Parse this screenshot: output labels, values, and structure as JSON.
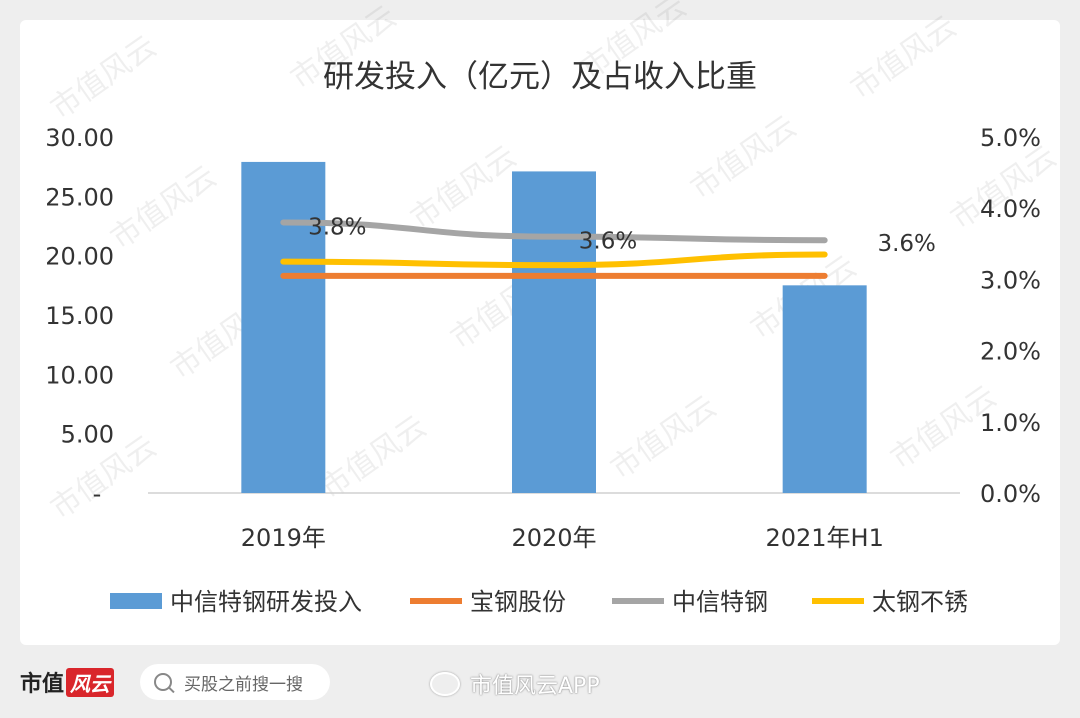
{
  "chart_data": {
    "type": "bar+line",
    "title": "研发投入（亿元）及占收入比重",
    "categories": [
      "2019年",
      "2020年",
      "2021年H1"
    ],
    "bar_series": {
      "name": "中信特钢研发投入",
      "color": "#5b9bd5",
      "values": [
        27.9,
        27.1,
        17.5
      ]
    },
    "line_series": [
      {
        "name": "宝钢股份",
        "color": "#ed7d31",
        "values": [
          3.05,
          3.05,
          3.05
        ]
      },
      {
        "name": "中信特钢",
        "color": "#a5a5a5",
        "values": [
          3.8,
          3.6,
          3.55
        ],
        "labels": [
          "3.8%",
          "3.6%",
          "3.6%"
        ]
      },
      {
        "name": "太钢不锈",
        "color": "#ffc000",
        "values": [
          3.25,
          3.2,
          3.35
        ]
      }
    ],
    "left_axis": {
      "ylim": [
        0,
        30
      ],
      "ticks": [
        0,
        5,
        10,
        15,
        20,
        25,
        30
      ],
      "tick_labels": [
        "-",
        "5.00",
        "10.00",
        "15.00",
        "20.00",
        "25.00",
        "30.00"
      ]
    },
    "right_axis": {
      "ylim": [
        0,
        5
      ],
      "ticks": [
        0,
        1,
        2,
        3,
        4,
        5
      ],
      "tick_labels": [
        "0.0%",
        "1.0%",
        "2.0%",
        "3.0%",
        "4.0%",
        "5.0%"
      ]
    },
    "grid": false,
    "legend_position": "bottom"
  },
  "footer": {
    "brand_text": "市值",
    "brand_mark": "风云",
    "search_placeholder": "买股之前搜一搜",
    "weibo_handle": "市值风云APP"
  },
  "watermark_text": "市值风云"
}
